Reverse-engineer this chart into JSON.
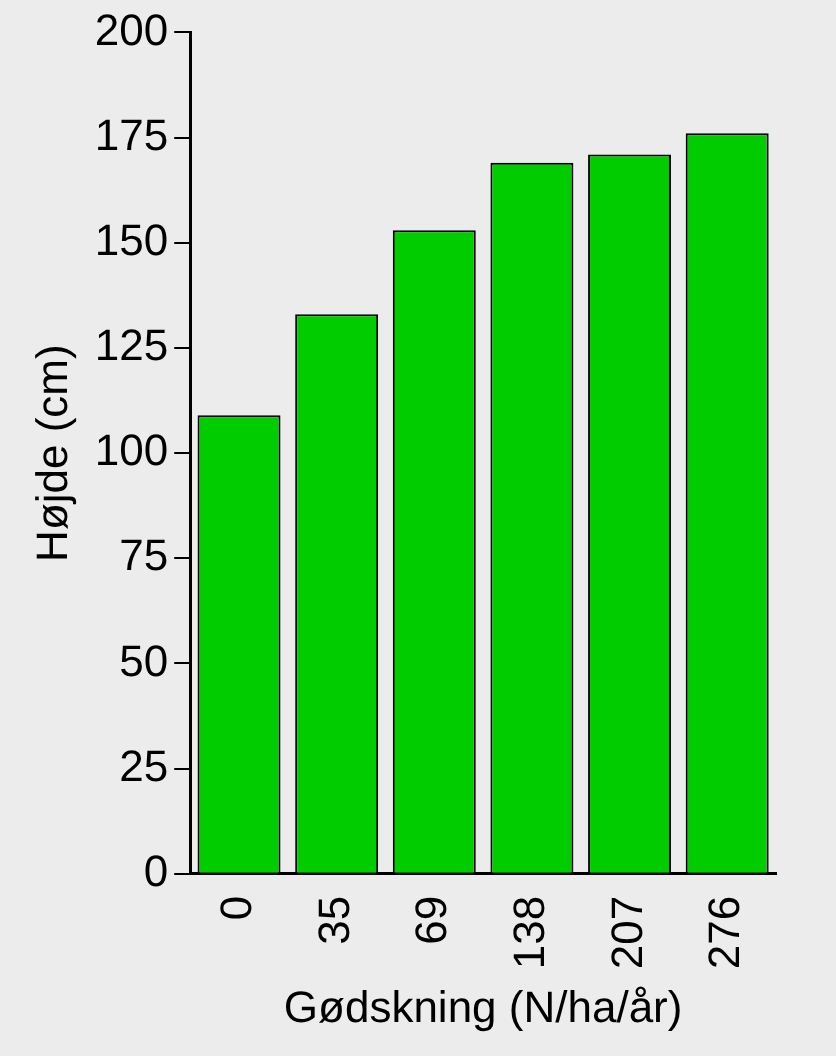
{
  "chart_data": {
    "type": "bar",
    "xlabel": "Gødskning (N/ha/år)",
    "ylabel": "Højde (cm)",
    "categories": [
      "0",
      "35",
      "69",
      "138",
      "207",
      "276"
    ],
    "values": [
      109,
      133,
      153,
      169,
      171,
      176
    ],
    "color": "#00cc00",
    "ylim": [
      0,
      200
    ],
    "yticks": [
      0,
      25,
      50,
      75,
      100,
      125,
      150,
      175,
      200
    ],
    "grid": false,
    "legend": false
  }
}
